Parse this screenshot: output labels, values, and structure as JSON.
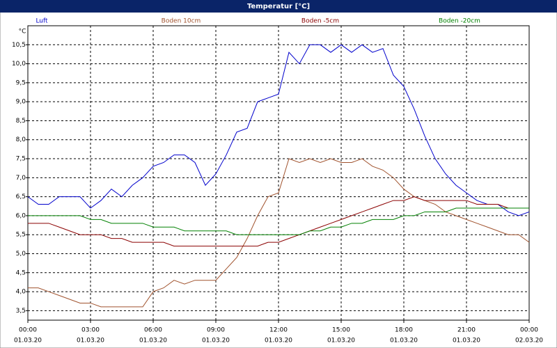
{
  "chart_data": {
    "type": "line",
    "title": "Temperatur [°C]",
    "y_unit": "°C",
    "x": [
      0,
      0.5,
      1,
      1.5,
      2,
      2.5,
      3,
      3.5,
      4,
      4.5,
      5,
      5.5,
      6,
      6.5,
      7,
      7.5,
      8,
      8.5,
      9,
      9.5,
      10,
      10.5,
      11,
      11.5,
      12,
      12.5,
      13,
      13.5,
      14,
      14.5,
      15,
      15.5,
      16,
      16.5,
      17,
      17.5,
      18,
      18.5,
      19,
      19.5,
      20,
      20.5,
      21,
      21.5,
      22,
      22.5,
      23,
      23.5,
      24
    ],
    "xlim": [
      0,
      24
    ],
    "xticks": [
      {
        "value": 0,
        "label": "00:00"
      },
      {
        "value": 3,
        "label": "03:00"
      },
      {
        "value": 6,
        "label": "06:00"
      },
      {
        "value": 9,
        "label": "09:00"
      },
      {
        "value": 12,
        "label": "12:00"
      },
      {
        "value": 15,
        "label": "15:00"
      },
      {
        "value": 18,
        "label": "18:00"
      },
      {
        "value": 21,
        "label": "21:00"
      },
      {
        "value": 24,
        "label": "00:00"
      }
    ],
    "xtick_dates": [
      "01.03.20",
      "01.03.20",
      "01.03.20",
      "01.03.20",
      "01.03.20",
      "01.03.20",
      "01.03.20",
      "01.03.20",
      "02.03.20"
    ],
    "ylim": [
      3.25,
      11.0
    ],
    "yticks": [
      {
        "value": 3.5,
        "label": "3,5"
      },
      {
        "value": 4,
        "label": "4,0"
      },
      {
        "value": 4.5,
        "label": "4,5"
      },
      {
        "value": 5,
        "label": "5,0"
      },
      {
        "value": 5.5,
        "label": "5,5"
      },
      {
        "value": 6,
        "label": "6,0"
      },
      {
        "value": 6.5,
        "label": "6,5"
      },
      {
        "value": 7,
        "label": "7,0"
      },
      {
        "value": 7.5,
        "label": "7,5"
      },
      {
        "value": 8,
        "label": "8,0"
      },
      {
        "value": 8.5,
        "label": "8,5"
      },
      {
        "value": 9,
        "label": "9,0"
      },
      {
        "value": 9.5,
        "label": "9,5"
      },
      {
        "value": 10,
        "label": "10,0"
      },
      {
        "value": 10.5,
        "label": "10,5"
      }
    ],
    "grid": true,
    "series": [
      {
        "name": "Luft",
        "color": "#0000cc",
        "values": [
          6.5,
          6.3,
          6.3,
          6.5,
          6.5,
          6.5,
          6.2,
          6.4,
          6.7,
          6.5,
          6.8,
          7.0,
          7.3,
          7.4,
          7.6,
          7.6,
          7.4,
          6.8,
          7.1,
          7.6,
          8.2,
          8.3,
          9.0,
          9.1,
          9.2,
          10.3,
          10.0,
          10.5,
          10.5,
          10.3,
          10.5,
          10.3,
          10.5,
          10.3,
          10.4,
          9.7,
          9.4,
          8.8,
          8.1,
          7.5,
          7.1,
          6.8,
          6.6,
          6.4,
          6.3,
          6.3,
          6.1,
          6.0,
          6.1
        ]
      },
      {
        "name": "Boden 10cm",
        "color": "#a0522d",
        "values": [
          4.1,
          4.1,
          4.0,
          3.9,
          3.8,
          3.7,
          3.7,
          3.6,
          3.6,
          3.6,
          3.6,
          3.6,
          4.0,
          4.1,
          4.3,
          4.2,
          4.3,
          4.3,
          4.3,
          4.6,
          4.9,
          5.4,
          6.0,
          6.5,
          6.6,
          7.5,
          7.4,
          7.5,
          7.4,
          7.5,
          7.4,
          7.4,
          7.5,
          7.3,
          7.2,
          7.0,
          6.7,
          6.5,
          6.4,
          6.3,
          6.1,
          6.0,
          5.9,
          5.8,
          5.7,
          5.6,
          5.5,
          5.5,
          5.3
        ]
      },
      {
        "name": "Boden -5cm",
        "color": "#8b0000",
        "values": [
          5.8,
          5.8,
          5.8,
          5.7,
          5.6,
          5.5,
          5.5,
          5.5,
          5.4,
          5.4,
          5.3,
          5.3,
          5.3,
          5.3,
          5.2,
          5.2,
          5.2,
          5.2,
          5.2,
          5.2,
          5.2,
          5.2,
          5.2,
          5.3,
          5.3,
          5.4,
          5.5,
          5.6,
          5.7,
          5.8,
          5.9,
          6.0,
          6.1,
          6.2,
          6.3,
          6.4,
          6.4,
          6.5,
          6.4,
          6.4,
          6.4,
          6.4,
          6.4,
          6.3,
          6.3,
          6.3,
          6.2,
          6.2,
          6.2
        ]
      },
      {
        "name": "Boden -20cm",
        "color": "#008000",
        "values": [
          6.0,
          6.0,
          6.0,
          6.0,
          6.0,
          6.0,
          5.9,
          5.9,
          5.8,
          5.8,
          5.8,
          5.8,
          5.7,
          5.7,
          5.7,
          5.6,
          5.6,
          5.6,
          5.6,
          5.6,
          5.5,
          5.5,
          5.5,
          5.5,
          5.5,
          5.5,
          5.5,
          5.6,
          5.6,
          5.7,
          5.7,
          5.8,
          5.8,
          5.9,
          5.9,
          5.9,
          6.0,
          6.0,
          6.1,
          6.1,
          6.1,
          6.2,
          6.2,
          6.2,
          6.2,
          6.2,
          6.2,
          6.2,
          6.2
        ]
      }
    ]
  }
}
